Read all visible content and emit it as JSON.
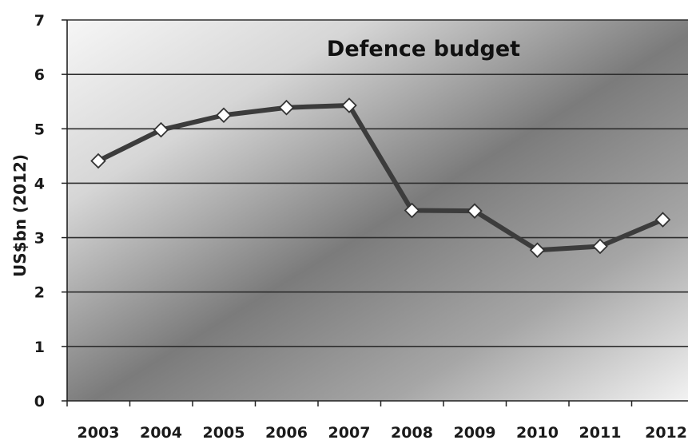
{
  "chart_data": {
    "type": "line",
    "title": "Defence budget",
    "ylabel": "US$bn (2012)",
    "xlabel": "",
    "ylim": [
      0,
      7
    ],
    "yticks": [
      "0",
      "1",
      "2",
      "3",
      "4",
      "5",
      "6",
      "7"
    ],
    "categories": [
      "2003",
      "2004",
      "2005",
      "2006",
      "2007",
      "2008",
      "2009",
      "2010",
      "2011",
      "2012"
    ],
    "series": [
      {
        "values": [
          4.41,
          4.98,
          5.25,
          5.39,
          5.43,
          3.5,
          3.49,
          2.77,
          2.84,
          3.33
        ]
      }
    ],
    "grid": true,
    "legend": "none",
    "colors": {
      "line": "#3c3c3c",
      "marker_fill": "#ffffff",
      "marker_stroke": "#333333",
      "grid": "#2e2e2e"
    }
  }
}
